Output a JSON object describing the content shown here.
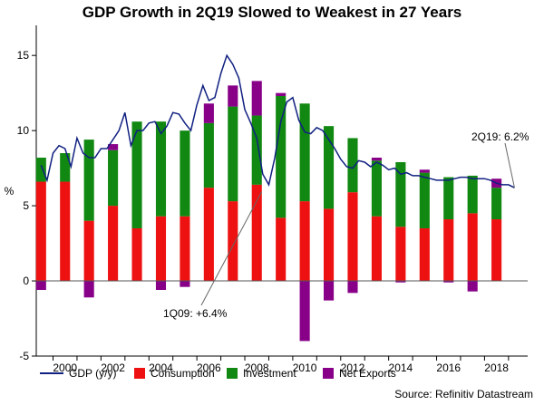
{
  "chart_data": {
    "type": "bar",
    "title": "GDP Growth in 2Q19 Slowed to Weakest in 27 Years",
    "ylabel": "%",
    "xlabel": "",
    "ylim": [
      -5,
      17
    ],
    "y_ticks": [
      "-5",
      "0",
      "5",
      "10",
      "15"
    ],
    "xlim": [
      1999.3,
      2019.8
    ],
    "x_ticks": [
      "2000",
      "2002",
      "2004",
      "2006",
      "2008",
      "2010",
      "2012",
      "2014",
      "2016",
      "2018"
    ],
    "stacked": true,
    "categories": [
      "1999",
      "2000",
      "2001",
      "2002",
      "2003",
      "2004",
      "2005",
      "2006",
      "2007",
      "2008",
      "2009",
      "2010",
      "2011",
      "2012",
      "2013",
      "2014",
      "2015",
      "2016",
      "2017",
      "2018"
    ],
    "series": [
      {
        "name": "Consumption",
        "color": "#ee1111",
        "values": [
          6.6,
          6.6,
          4.0,
          5.0,
          3.5,
          4.3,
          4.3,
          6.2,
          5.3,
          6.4,
          4.2,
          5.3,
          4.8,
          5.9,
          4.3,
          3.6,
          3.5,
          4.1,
          4.5,
          4.1
        ]
      },
      {
        "name": "Investment",
        "color": "#118811",
        "values": [
          1.6,
          1.9,
          5.4,
          3.7,
          7.1,
          6.3,
          5.7,
          4.3,
          6.3,
          4.6,
          8.1,
          6.5,
          5.5,
          3.6,
          3.7,
          4.3,
          3.7,
          2.8,
          2.5,
          2.1
        ]
      },
      {
        "name": "Net Exports",
        "color": "#880088",
        "values": [
          -0.6,
          0.0,
          -1.1,
          0.4,
          0.0,
          -0.6,
          -0.4,
          1.3,
          1.4,
          2.3,
          0.2,
          -4.0,
          -1.3,
          -0.8,
          0.2,
          -0.1,
          0.2,
          -0.1,
          -0.7,
          0.6
        ]
      }
    ],
    "gdp_line": {
      "name": "GDP (y/y)",
      "color": "#102080",
      "points": [
        [
          1999.5,
          7.7
        ],
        [
          1999.75,
          6.7
        ],
        [
          2000.0,
          8.5
        ],
        [
          2000.25,
          9.0
        ],
        [
          2000.5,
          8.8
        ],
        [
          2000.75,
          7.6
        ],
        [
          2001.0,
          9.5
        ],
        [
          2001.25,
          8.5
        ],
        [
          2001.5,
          8.2
        ],
        [
          2001.75,
          8.2
        ],
        [
          2002.0,
          8.8
        ],
        [
          2002.25,
          8.8
        ],
        [
          2002.5,
          9.4
        ],
        [
          2002.75,
          10.0
        ],
        [
          2003.0,
          11.2
        ],
        [
          2003.25,
          9.0
        ],
        [
          2003.5,
          10.0
        ],
        [
          2003.75,
          10.0
        ],
        [
          2004.0,
          10.5
        ],
        [
          2004.25,
          10.6
        ],
        [
          2004.5,
          9.8
        ],
        [
          2004.75,
          10.3
        ],
        [
          2005.0,
          11.2
        ],
        [
          2005.25,
          11.1
        ],
        [
          2005.5,
          10.5
        ],
        [
          2005.75,
          10.0
        ],
        [
          2006.0,
          11.7
        ],
        [
          2006.25,
          13.0
        ],
        [
          2006.5,
          12.0
        ],
        [
          2006.75,
          12.2
        ],
        [
          2007.0,
          13.8
        ],
        [
          2007.25,
          15.0
        ],
        [
          2007.5,
          14.4
        ],
        [
          2007.75,
          13.5
        ],
        [
          2008.0,
          11.4
        ],
        [
          2008.25,
          10.5
        ],
        [
          2008.5,
          9.5
        ],
        [
          2008.75,
          7.1
        ],
        [
          2009.0,
          6.4
        ],
        [
          2009.25,
          8.2
        ],
        [
          2009.5,
          10.6
        ],
        [
          2009.75,
          11.9
        ],
        [
          2010.0,
          12.2
        ],
        [
          2010.25,
          10.7
        ],
        [
          2010.5,
          9.9
        ],
        [
          2010.75,
          9.8
        ],
        [
          2011.0,
          10.2
        ],
        [
          2011.25,
          10.0
        ],
        [
          2011.5,
          9.4
        ],
        [
          2011.75,
          8.8
        ],
        [
          2012.0,
          8.1
        ],
        [
          2012.25,
          7.6
        ],
        [
          2012.5,
          7.5
        ],
        [
          2012.75,
          8.0
        ],
        [
          2013.0,
          7.9
        ],
        [
          2013.25,
          7.6
        ],
        [
          2013.5,
          7.9
        ],
        [
          2013.75,
          7.7
        ],
        [
          2014.0,
          7.4
        ],
        [
          2014.25,
          7.5
        ],
        [
          2014.5,
          7.1
        ],
        [
          2014.75,
          7.2
        ],
        [
          2015.0,
          7.0
        ],
        [
          2015.25,
          7.0
        ],
        [
          2015.5,
          6.9
        ],
        [
          2015.75,
          6.8
        ],
        [
          2016.0,
          6.7
        ],
        [
          2016.25,
          6.7
        ],
        [
          2016.5,
          6.7
        ],
        [
          2016.75,
          6.8
        ],
        [
          2017.0,
          6.9
        ],
        [
          2017.25,
          6.9
        ],
        [
          2017.5,
          6.8
        ],
        [
          2017.75,
          6.8
        ],
        [
          2018.0,
          6.8
        ],
        [
          2018.25,
          6.7
        ],
        [
          2018.5,
          6.5
        ],
        [
          2018.75,
          6.4
        ],
        [
          2019.0,
          6.4
        ],
        [
          2019.25,
          6.2
        ]
      ]
    },
    "legend": {
      "placement": "bottom",
      "entries": [
        "GDP (y/y)",
        "Consumption",
        "Investment",
        "Net Exports"
      ]
    },
    "annotations": [
      {
        "text": "2Q19: 6.2%",
        "x": 2019.25,
        "y": 6.2
      },
      {
        "text": "1Q09: +6.4%",
        "x": 2009.0,
        "y": 6.4
      }
    ],
    "grid": false,
    "zero_line": true,
    "source": "Source: Refinitiv Datastream"
  }
}
